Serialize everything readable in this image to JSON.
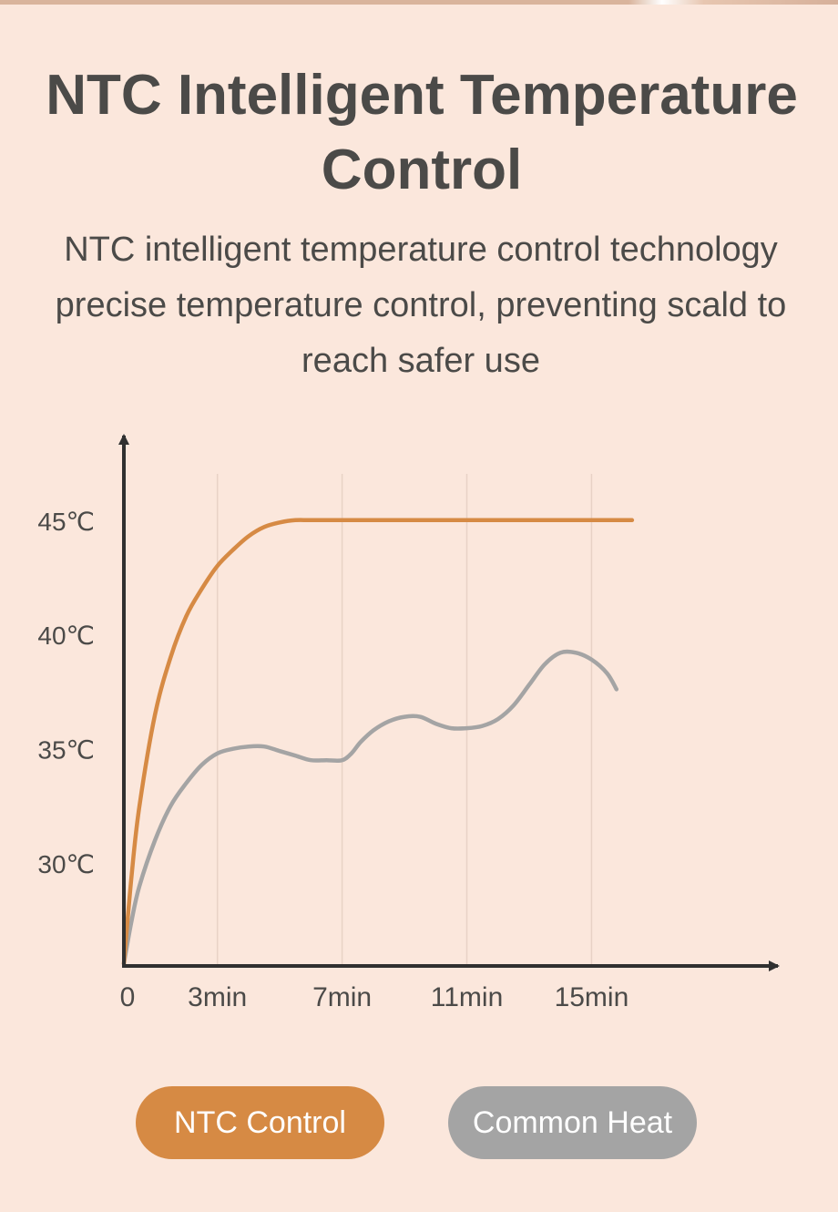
{
  "header": {
    "title": "NTC Intelligent Temperature Control",
    "subtitle": "NTC intelligent temperature control technology precise temperature control, preventing scald to reach safer use"
  },
  "colors": {
    "background": "#fbe7dc",
    "ntc": "#d68a44",
    "common": "#a4a4a4",
    "axis": "#303030",
    "text": "#4b4a48"
  },
  "chart_data": {
    "type": "line",
    "x_tick_labels": [
      "0",
      "3min",
      "7min",
      "11min",
      "15min"
    ],
    "x_tick_values": [
      0,
      3,
      7,
      11,
      15
    ],
    "xlim": [
      0,
      17.5
    ],
    "y_tick_labels": [
      "30℃",
      "35℃",
      "40℃",
      "45℃"
    ],
    "y_tick_values": [
      30,
      35,
      40,
      45
    ],
    "ylim": [
      25.5,
      48.5
    ],
    "grid": "vertical",
    "series": [
      {
        "name": "NTC Control",
        "color": "#d68a44",
        "x": [
          0,
          0.25,
          0.5,
          1,
          1.5,
          2,
          2.5,
          3,
          3.5,
          4,
          4.5,
          5,
          5.5,
          6,
          7,
          9,
          11,
          13,
          15,
          16.3
        ],
        "y": [
          25.6,
          29.5,
          32.5,
          36.5,
          39.0,
          40.8,
          42.0,
          43.0,
          43.7,
          44.3,
          44.7,
          44.9,
          45.0,
          45.0,
          45.0,
          45.0,
          45.0,
          45.0,
          45.0,
          45.0
        ]
      },
      {
        "name": "Common Heat",
        "color": "#a4a4a4",
        "x": [
          0,
          0.25,
          0.5,
          1,
          1.5,
          2,
          2.5,
          3,
          3.5,
          4,
          4.5,
          5,
          5.5,
          6,
          6.5,
          7,
          7.3,
          7.6,
          8,
          8.5,
          9,
          9.5,
          10,
          10.5,
          11,
          11.5,
          12,
          12.5,
          13,
          13.5,
          14,
          14.5,
          15,
          15.5,
          15.8
        ],
        "y": [
          25.6,
          27.5,
          29.0,
          31.0,
          32.5,
          33.5,
          34.3,
          34.8,
          35.0,
          35.1,
          35.1,
          34.9,
          34.7,
          34.5,
          34.5,
          34.5,
          34.8,
          35.3,
          35.8,
          36.2,
          36.4,
          36.4,
          36.1,
          35.9,
          35.9,
          36.0,
          36.3,
          36.9,
          37.8,
          38.7,
          39.2,
          39.2,
          38.9,
          38.3,
          37.6
        ]
      }
    ]
  },
  "legend": {
    "ntc_label": "NTC Control",
    "common_label": "Common Heat"
  }
}
